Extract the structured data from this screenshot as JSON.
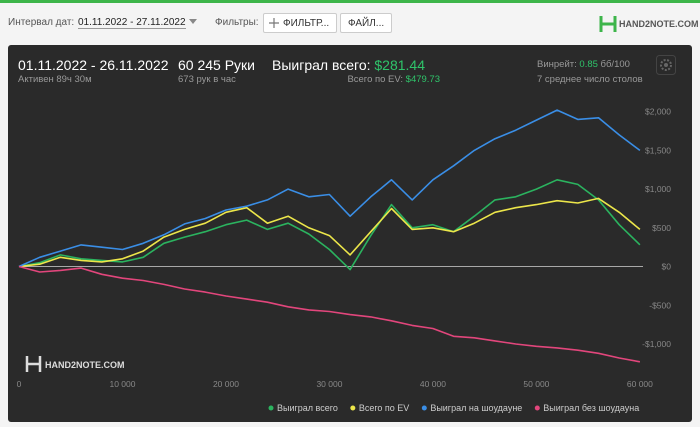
{
  "toolbar": {
    "date_label": "Интервал дат:",
    "date_range": "01.11.2022 - 27.11.2022",
    "filters_label": "Фильтры:",
    "filter_button": "ФИЛЬТР...",
    "file_button": "ФАЙЛ...",
    "logo": "HAND2NOTE.COM"
  },
  "summary": {
    "period": "01.11.2022 - 26.11.2022",
    "active": "Активен 89ч 30м",
    "hands": "60 245 Руки",
    "hands_per_hour": "673 рук в час",
    "won_label": "Выиграл всего:",
    "won": "$281.44",
    "ev_label": "Всего по EV:",
    "ev": "$479.73",
    "winrate_label": "Винрейт:",
    "winrate": "0.85",
    "winrate_unit": "бб/100",
    "tables": "7 среднее число столов"
  },
  "chart_data": {
    "type": "line",
    "watermark": "HAND2NOTE.COM",
    "x": [
      0,
      2000,
      4000,
      6000,
      8000,
      10000,
      12000,
      14000,
      16000,
      18000,
      20000,
      22000,
      24000,
      26000,
      28000,
      30000,
      32000,
      34000,
      36000,
      38000,
      40000,
      42000,
      44000,
      46000,
      48000,
      50000,
      52000,
      54000,
      56000,
      58000,
      60000
    ],
    "xlim": [
      0,
      60300
    ],
    "xticks": [
      0,
      {
        "value": 10000,
        "label": "10 000"
      },
      {
        "value": 20000,
        "label": "20 000"
      },
      {
        "value": 30000,
        "label": "30 000"
      },
      {
        "value": 40000,
        "label": "40 000"
      },
      {
        "value": 50000,
        "label": "50 000"
      },
      {
        "value": 60000,
        "label": "60 000"
      }
    ],
    "ylim": [
      -1400,
      2150
    ],
    "yticks": [
      {
        "value": -1000,
        "label": "-$1,000"
      },
      {
        "value": -500,
        "label": "-$500"
      },
      {
        "value": 0,
        "label": "$0"
      },
      {
        "value": 500,
        "label": "$500"
      },
      {
        "value": 1000,
        "label": "$1,000"
      },
      {
        "value": 1500,
        "label": "$1,500"
      },
      {
        "value": 2000,
        "label": "$2,000"
      }
    ],
    "series": [
      {
        "name": "Выиграл всего",
        "color": "#2bb35f",
        "values": [
          0,
          50,
          150,
          100,
          80,
          60,
          120,
          300,
          380,
          450,
          540,
          600,
          480,
          560,
          420,
          220,
          -40,
          400,
          800,
          500,
          540,
          450,
          650,
          860,
          900,
          1000,
          1120,
          1060,
          860,
          540,
          281
        ]
      },
      {
        "name": "Всего по EV",
        "color": "#ece64a",
        "values": [
          0,
          30,
          120,
          80,
          60,
          100,
          200,
          380,
          480,
          560,
          700,
          760,
          560,
          650,
          500,
          400,
          150,
          450,
          750,
          480,
          500,
          450,
          560,
          700,
          760,
          800,
          850,
          820,
          880,
          700,
          480
        ]
      },
      {
        "name": "Выиграл на шоудауне",
        "color": "#3a8ee6",
        "values": [
          0,
          120,
          200,
          280,
          250,
          220,
          300,
          410,
          550,
          620,
          730,
          780,
          860,
          1000,
          900,
          930,
          650,
          900,
          1120,
          860,
          1120,
          1300,
          1500,
          1650,
          1760,
          1890,
          2020,
          1900,
          1920,
          1700,
          1500
        ]
      },
      {
        "name": "Выиграл без шоудауна",
        "color": "#e2467c",
        "values": [
          0,
          -70,
          -50,
          -20,
          -100,
          -150,
          -180,
          -230,
          -290,
          -330,
          -380,
          -420,
          -460,
          -520,
          -560,
          -580,
          -620,
          -650,
          -700,
          -760,
          -800,
          -900,
          -920,
          -960,
          -1000,
          -1030,
          -1050,
          -1080,
          -1120,
          -1180,
          -1230
        ]
      }
    ]
  }
}
